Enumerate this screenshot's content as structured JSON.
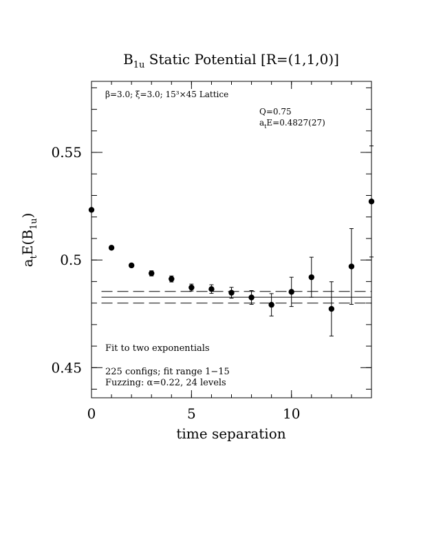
{
  "chart_data": {
    "type": "scatter",
    "title": {
      "main": "B",
      "sub": "1u",
      "rest": " Static Potential [R=(1,1,0)]"
    },
    "xlabel": "time separation",
    "ylabel": {
      "a": "a",
      "t": "t",
      "mid": "E(B",
      "sub": "1u",
      "end": ")"
    },
    "xlim": [
      0,
      14
    ],
    "ylim": [
      0.436,
      0.583
    ],
    "xticks": [
      {
        "value": 0,
        "label": "0"
      },
      {
        "value": 5,
        "label": "5"
      },
      {
        "value": 10,
        "label": "10"
      }
    ],
    "yticks": [
      {
        "value": 0.45,
        "label": "0.45"
      },
      {
        "value": 0.5,
        "label": "0.5"
      },
      {
        "value": 0.55,
        "label": "0.55"
      }
    ],
    "annotations": {
      "lattice": "β=3.0; ξ=3.0; 15³×45 Lattice",
      "q": "Q=0.75",
      "energy_a": "a",
      "energy_t": "t",
      "energy_rest": "E=0.4827(27)",
      "fit_method": "Fit to two exponentials",
      "configs": "225 configs; fit range 1−15",
      "fuzzing": "Fuzzing: α=0.22, 24 levels"
    },
    "fit": {
      "value": 0.4827,
      "error": 0.0027,
      "x_range": [
        0.5,
        14
      ]
    },
    "points": [
      {
        "x": 0,
        "y": 0.5233,
        "err": 0.0008
      },
      {
        "x": 1,
        "y": 0.5057,
        "err": 0.0008
      },
      {
        "x": 2,
        "y": 0.4975,
        "err": 0.0008
      },
      {
        "x": 3,
        "y": 0.4938,
        "err": 0.0012
      },
      {
        "x": 4,
        "y": 0.4912,
        "err": 0.0014
      },
      {
        "x": 5,
        "y": 0.4872,
        "err": 0.0016
      },
      {
        "x": 6,
        "y": 0.4865,
        "err": 0.002
      },
      {
        "x": 7,
        "y": 0.4848,
        "err": 0.0025
      },
      {
        "x": 8,
        "y": 0.4826,
        "err": 0.0032
      },
      {
        "x": 9,
        "y": 0.4792,
        "err": 0.0052
      },
      {
        "x": 10,
        "y": 0.4852,
        "err": 0.0068
      },
      {
        "x": 11,
        "y": 0.492,
        "err": 0.0093
      },
      {
        "x": 12,
        "y": 0.4773,
        "err": 0.0126
      },
      {
        "x": 13,
        "y": 0.497,
        "err": 0.0176
      },
      {
        "x": 14,
        "y": 0.5272,
        "err": 0.0258
      }
    ]
  }
}
